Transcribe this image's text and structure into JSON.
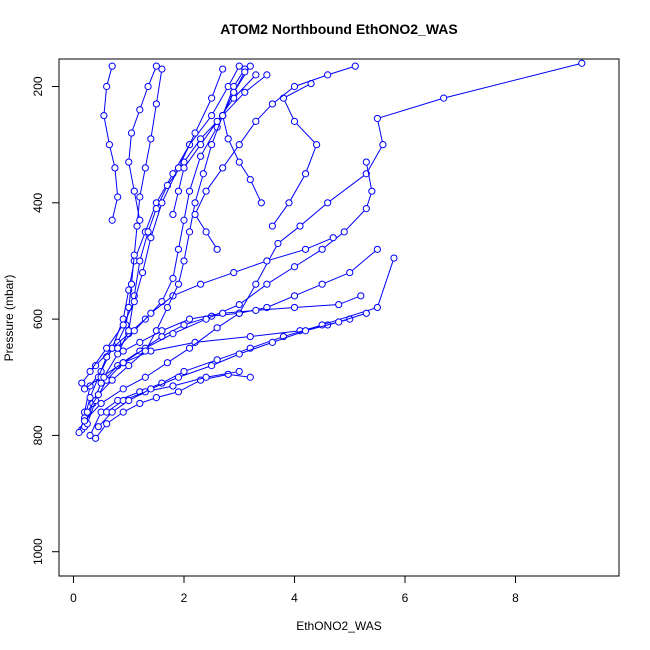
{
  "chart_data": {
    "type": "line",
    "title": "ATOM2 Northbound EthONO2_WAS",
    "xlabel": "EthONO2_WAS",
    "ylabel": "Pressure (mbar)",
    "xlim": [
      0,
      10
    ],
    "ylim": [
      160,
      1040
    ],
    "y_reversed": true,
    "x_ticks": [
      0,
      2,
      4,
      6,
      8
    ],
    "y_ticks": [
      200,
      400,
      600,
      800,
      1000
    ],
    "grid": false,
    "colors": {
      "series": "#0000ff"
    },
    "markers": "open-circle",
    "series": [
      {
        "values": [
          [
            0.15,
            790
          ],
          [
            0.2,
            760
          ],
          [
            0.3,
            715
          ],
          [
            0.5,
            690
          ],
          [
            0.7,
            650
          ],
          [
            0.9,
            600
          ],
          [
            1.0,
            550
          ],
          [
            1.1,
            500
          ],
          [
            1.3,
            450
          ],
          [
            1.5,
            400
          ],
          [
            1.8,
            350
          ],
          [
            2.1,
            300
          ],
          [
            2.5,
            250
          ],
          [
            2.8,
            200
          ],
          [
            3.0,
            165
          ]
        ]
      },
      {
        "values": [
          [
            0.2,
            785
          ],
          [
            0.35,
            745
          ],
          [
            0.5,
            710
          ],
          [
            0.8,
            680
          ],
          [
            1.2,
            655
          ],
          [
            1.6,
            630
          ],
          [
            2.0,
            610
          ],
          [
            2.5,
            595
          ],
          [
            3.0,
            590
          ],
          [
            3.5,
            580
          ],
          [
            4.0,
            560
          ],
          [
            4.5,
            540
          ],
          [
            5.0,
            520
          ],
          [
            5.5,
            480
          ]
        ]
      },
      {
        "values": [
          [
            0.25,
            780
          ],
          [
            0.4,
            740
          ],
          [
            0.6,
            705
          ],
          [
            0.9,
            675
          ],
          [
            1.4,
            655
          ],
          [
            2.2,
            640
          ],
          [
            3.2,
            630
          ],
          [
            4.1,
            620
          ],
          [
            4.6,
            610
          ],
          [
            5.0,
            600
          ]
        ]
      },
      {
        "values": [
          [
            0.1,
            795
          ],
          [
            0.2,
            770
          ],
          [
            0.3,
            735
          ],
          [
            0.45,
            700
          ],
          [
            0.6,
            665
          ],
          [
            0.8,
            640
          ],
          [
            0.95,
            610
          ],
          [
            1.0,
            580
          ],
          [
            1.05,
            540
          ],
          [
            1.1,
            490
          ],
          [
            1.15,
            440
          ],
          [
            1.2,
            390
          ],
          [
            1.3,
            340
          ],
          [
            1.4,
            290
          ],
          [
            1.5,
            230
          ],
          [
            1.6,
            170
          ]
        ]
      },
      {
        "values": [
          [
            0.3,
            800
          ],
          [
            0.5,
            760
          ],
          [
            0.8,
            740
          ],
          [
            1.2,
            725
          ],
          [
            1.6,
            710
          ],
          [
            2.0,
            690
          ],
          [
            2.6,
            670
          ],
          [
            3.2,
            650
          ],
          [
            3.8,
            630
          ],
          [
            4.5,
            610
          ],
          [
            5.5,
            580
          ],
          [
            5.8,
            495
          ]
        ]
      },
      {
        "values": [
          [
            0.2,
            775
          ],
          [
            0.5,
            745
          ],
          [
            0.9,
            720
          ],
          [
            1.3,
            700
          ],
          [
            1.7,
            675
          ],
          [
            2.1,
            650
          ],
          [
            2.6,
            615
          ],
          [
            3.0,
            590
          ],
          [
            3.3,
            540
          ],
          [
            3.7,
            470
          ],
          [
            4.1,
            440
          ],
          [
            4.6,
            400
          ],
          [
            5.3,
            350
          ],
          [
            5.6,
            300
          ],
          [
            5.5,
            255
          ],
          [
            6.7,
            220
          ],
          [
            9.2,
            160
          ]
        ]
      },
      {
        "values": [
          [
            0.15,
            710
          ],
          [
            0.4,
            680
          ],
          [
            0.7,
            650
          ],
          [
            1.0,
            625
          ],
          [
            1.3,
            600
          ],
          [
            1.6,
            570
          ],
          [
            1.8,
            530
          ],
          [
            1.9,
            480
          ],
          [
            2.0,
            430
          ],
          [
            2.1,
            380
          ],
          [
            2.3,
            320
          ],
          [
            2.6,
            270
          ],
          [
            2.9,
            210
          ],
          [
            3.2,
            165
          ]
        ]
      },
      {
        "values": [
          [
            0.4,
            805
          ],
          [
            0.6,
            780
          ],
          [
            0.9,
            760
          ],
          [
            1.2,
            745
          ],
          [
            1.5,
            735
          ],
          [
            1.9,
            725
          ],
          [
            2.3,
            705
          ],
          [
            2.8,
            695
          ],
          [
            3.2,
            700
          ]
        ]
      },
      {
        "values": [
          [
            0.6,
            760
          ],
          [
            0.9,
            740
          ],
          [
            1.3,
            725
          ],
          [
            1.8,
            715
          ],
          [
            2.4,
            700
          ],
          [
            3.0,
            690
          ]
        ]
      },
      {
        "values": [
          [
            0.2,
            720
          ],
          [
            0.5,
            700
          ],
          [
            0.9,
            675
          ],
          [
            1.3,
            650
          ],
          [
            1.8,
            625
          ],
          [
            2.4,
            600
          ],
          [
            3.0,
            575
          ],
          [
            3.5,
            540
          ],
          [
            4.0,
            510
          ],
          [
            4.5,
            480
          ],
          [
            4.9,
            450
          ],
          [
            5.3,
            410
          ],
          [
            5.4,
            380
          ],
          [
            5.3,
            330
          ]
        ]
      },
      {
        "values": [
          [
            0.55,
            700
          ],
          [
            0.8,
            660
          ],
          [
            1.0,
            620
          ],
          [
            1.1,
            560
          ],
          [
            1.2,
            500
          ],
          [
            1.35,
            450
          ],
          [
            1.5,
            410
          ],
          [
            1.7,
            370
          ],
          [
            2.0,
            330
          ],
          [
            2.3,
            290
          ],
          [
            2.7,
            250
          ],
          [
            3.1,
            210
          ],
          [
            3.5,
            180
          ]
        ]
      },
      {
        "values": [
          [
            0.3,
            690
          ],
          [
            0.6,
            650
          ],
          [
            0.9,
            610
          ],
          [
            1.1,
            570
          ],
          [
            1.25,
            520
          ],
          [
            1.4,
            460
          ],
          [
            1.6,
            400
          ],
          [
            1.9,
            340
          ],
          [
            2.2,
            280
          ],
          [
            2.5,
            220
          ],
          [
            2.7,
            170
          ]
        ]
      },
      {
        "values": [
          [
            0.8,
            650
          ],
          [
            1.1,
            620
          ],
          [
            1.4,
            590
          ],
          [
            1.8,
            560
          ],
          [
            2.3,
            540
          ],
          [
            2.9,
            520
          ],
          [
            3.5,
            500
          ],
          [
            4.2,
            480
          ],
          [
            4.7,
            460
          ]
        ]
      },
      {
        "values": [
          [
            0.25,
            760
          ],
          [
            0.45,
            730
          ],
          [
            0.7,
            705
          ],
          [
            1.0,
            680
          ],
          [
            1.3,
            655
          ],
          [
            1.5,
            620
          ],
          [
            1.7,
            580
          ],
          [
            1.9,
            540
          ],
          [
            2.0,
            500
          ],
          [
            2.1,
            450
          ],
          [
            2.2,
            400
          ],
          [
            2.35,
            350
          ],
          [
            2.5,
            300
          ],
          [
            2.7,
            250
          ],
          [
            2.9,
            200
          ],
          [
            3.1,
            170
          ]
        ]
      },
      {
        "values": [
          [
            0.45,
            785
          ],
          [
            0.7,
            760
          ],
          [
            1.0,
            740
          ],
          [
            1.4,
            720
          ],
          [
            1.9,
            700
          ],
          [
            2.5,
            680
          ],
          [
            3.0,
            660
          ],
          [
            3.6,
            640
          ],
          [
            4.2,
            620
          ],
          [
            4.8,
            605
          ],
          [
            5.3,
            590
          ]
        ]
      },
      {
        "values": [
          [
            0.9,
            655
          ],
          [
            1.2,
            640
          ],
          [
            1.6,
            620
          ],
          [
            2.1,
            600
          ],
          [
            2.7,
            590
          ],
          [
            3.3,
            585
          ],
          [
            4.0,
            580
          ],
          [
            4.8,
            575
          ],
          [
            5.2,
            560
          ]
        ]
      },
      {
        "values": [
          [
            0.7,
            430
          ],
          [
            0.8,
            390
          ],
          [
            0.75,
            340
          ],
          [
            0.65,
            300
          ],
          [
            0.55,
            250
          ],
          [
            0.6,
            200
          ],
          [
            0.7,
            165
          ]
        ]
      },
      {
        "values": [
          [
            1.2,
            430
          ],
          [
            1.1,
            380
          ],
          [
            1.0,
            330
          ],
          [
            1.05,
            280
          ],
          [
            1.2,
            240
          ],
          [
            1.35,
            200
          ],
          [
            1.5,
            165
          ]
        ]
      },
      {
        "values": [
          [
            1.8,
            420
          ],
          [
            1.9,
            380
          ],
          [
            2.0,
            340
          ],
          [
            2.3,
            300
          ],
          [
            2.6,
            260
          ],
          [
            2.9,
            220
          ],
          [
            3.3,
            180
          ]
        ]
      },
      {
        "values": [
          [
            3.4,
            400
          ],
          [
            3.2,
            360
          ],
          [
            3.0,
            330
          ],
          [
            2.8,
            290
          ],
          [
            2.7,
            250
          ],
          [
            2.9,
            210
          ],
          [
            3.1,
            175
          ]
        ]
      },
      {
        "values": [
          [
            3.6,
            440
          ],
          [
            3.9,
            400
          ],
          [
            4.2,
            350
          ],
          [
            4.4,
            300
          ],
          [
            4.0,
            260
          ],
          [
            3.8,
            220
          ],
          [
            4.3,
            195
          ]
        ]
      },
      {
        "values": [
          [
            2.6,
            480
          ],
          [
            2.4,
            450
          ],
          [
            2.2,
            420
          ],
          [
            2.4,
            380
          ],
          [
            2.7,
            340
          ],
          [
            3.0,
            300
          ],
          [
            3.3,
            260
          ],
          [
            3.6,
            230
          ],
          [
            4.0,
            200
          ],
          [
            4.6,
            180
          ],
          [
            5.1,
            165
          ]
        ]
      }
    ]
  }
}
